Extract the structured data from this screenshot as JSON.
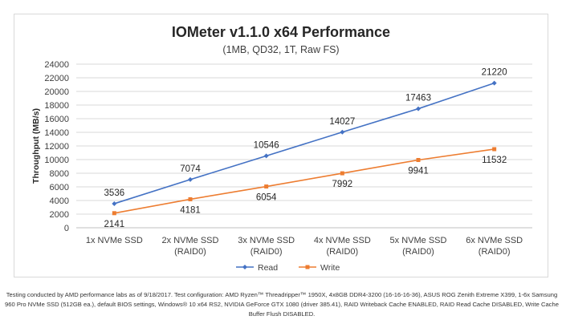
{
  "chart_data": {
    "type": "line",
    "title": "IOMeter v1.1.0 x64 Performance",
    "subtitle": "(1MB, QD32, 1T, Raw FS)",
    "ylabel": "Throughput (MB/s)",
    "xlabel": "",
    "categories": [
      [
        "1x NVMe SSD"
      ],
      [
        "2x NVMe SSD",
        "(RAID0)"
      ],
      [
        "3x NVMe SSD",
        "(RAID0)"
      ],
      [
        "4x NVMe SSD",
        "(RAID0)"
      ],
      [
        "5x NVMe SSD",
        "(RAID0)"
      ],
      [
        "6x NVMe SSD",
        "(RAID0)"
      ]
    ],
    "ylim": [
      0,
      24000
    ],
    "yticks": [
      0,
      2000,
      4000,
      6000,
      8000,
      10000,
      12000,
      14000,
      16000,
      18000,
      20000,
      22000,
      24000
    ],
    "grid": true,
    "legend_position": "bottom",
    "series": [
      {
        "name": "Read",
        "color": "#4472c4",
        "marker": "diamond",
        "label_position": "above",
        "values": [
          3536,
          7074,
          10546,
          14027,
          17463,
          21220
        ]
      },
      {
        "name": "Write",
        "color": "#ed7d31",
        "marker": "square",
        "label_position": "below",
        "values": [
          2141,
          4181,
          6054,
          7992,
          9941,
          11532
        ]
      }
    ]
  },
  "footnote": "Testing conducted by AMD performance labs as of 9/18/2017. Test configuration: AMD Ryzen™ Threadripper™ 1950X, 4x8GB DDR4-3200 (16-16-16-36), ASUS ROG Zenith Extreme X399, 1-6x Samsung 960 Pro NVMe SSD (512GB ea.), default BIOS settings, Windows® 10 x64 RS2, NVIDIA GeForce GTX 1080 (driver 385.41), RAID Writeback Cache ENABLED, RAID Read Cache DISABLED, Write Cache Buffer Flush DISABLED."
}
